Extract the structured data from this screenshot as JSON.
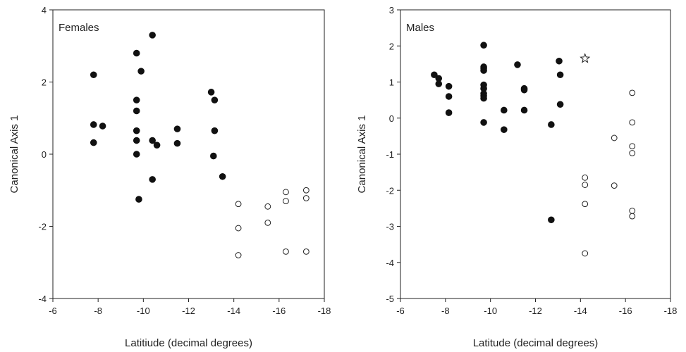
{
  "chart_data": [
    {
      "type": "scatter",
      "panel_label": "Females",
      "xlabel": "Latitiude (decimal degrees)",
      "ylabel": "Canonical Axis 1",
      "xlim": [
        -6,
        -18
      ],
      "ylim": [
        -4,
        4
      ],
      "xticks": [
        -6,
        -8,
        -10,
        -12,
        -14,
        -16,
        -18
      ],
      "yticks": [
        -4,
        -2,
        0,
        2,
        4
      ],
      "grid": false,
      "series": [
        {
          "marker": "filled-circle",
          "points": [
            [
              -7.8,
              2.2
            ],
            [
              -7.8,
              0.82
            ],
            [
              -7.8,
              0.32
            ],
            [
              -8.2,
              0.78
            ],
            [
              -9.7,
              2.8
            ],
            [
              -9.9,
              2.3
            ],
            [
              -9.7,
              1.5
            ],
            [
              -9.7,
              1.2
            ],
            [
              -9.7,
              0.65
            ],
            [
              -9.7,
              0.38
            ],
            [
              -9.7,
              0.0
            ],
            [
              -9.8,
              -1.25
            ],
            [
              -10.4,
              3.3
            ],
            [
              -10.4,
              0.38
            ],
            [
              -10.6,
              0.25
            ],
            [
              -10.4,
              -0.7
            ],
            [
              -11.5,
              0.7
            ],
            [
              -11.5,
              0.3
            ],
            [
              -13.0,
              1.72
            ],
            [
              -13.15,
              1.5
            ],
            [
              -13.15,
              0.65
            ],
            [
              -13.1,
              -0.05
            ],
            [
              -13.5,
              -0.62
            ]
          ]
        },
        {
          "marker": "open-circle",
          "points": [
            [
              -14.2,
              -1.38
            ],
            [
              -14.2,
              -2.05
            ],
            [
              -14.2,
              -2.8
            ],
            [
              -15.5,
              -1.45
            ],
            [
              -15.5,
              -1.9
            ],
            [
              -16.3,
              -1.05
            ],
            [
              -16.3,
              -1.3
            ],
            [
              -16.3,
              -2.7
            ],
            [
              -17.2,
              -1.0
            ],
            [
              -17.2,
              -1.22
            ],
            [
              -17.2,
              -2.7
            ]
          ]
        }
      ]
    },
    {
      "type": "scatter",
      "panel_label": "Males",
      "xlabel": "Latitude (decimal degrees)",
      "ylabel": "Canonical Axis 1",
      "xlim": [
        -6,
        -18
      ],
      "ylim": [
        -5,
        3
      ],
      "xticks": [
        -6,
        -8,
        -10,
        -12,
        -14,
        -16,
        -18
      ],
      "yticks": [
        -5,
        -4,
        -3,
        -2,
        -1,
        0,
        1,
        2,
        3
      ],
      "grid": false,
      "series": [
        {
          "marker": "filled-circle",
          "points": [
            [
              -7.5,
              1.2
            ],
            [
              -7.7,
              1.1
            ],
            [
              -7.7,
              0.95
            ],
            [
              -8.15,
              0.88
            ],
            [
              -8.15,
              0.6
            ],
            [
              -8.15,
              0.15
            ],
            [
              -9.7,
              2.02
            ],
            [
              -9.7,
              1.42
            ],
            [
              -9.7,
              1.38
            ],
            [
              -9.7,
              1.32
            ],
            [
              -9.7,
              0.92
            ],
            [
              -9.7,
              0.82
            ],
            [
              -9.7,
              0.68
            ],
            [
              -9.7,
              0.62
            ],
            [
              -9.7,
              0.55
            ],
            [
              -9.7,
              -0.12
            ],
            [
              -10.6,
              0.22
            ],
            [
              -10.6,
              -0.32
            ],
            [
              -11.2,
              1.48
            ],
            [
              -11.5,
              0.82
            ],
            [
              -11.5,
              0.78
            ],
            [
              -11.5,
              0.22
            ],
            [
              -12.7,
              -0.18
            ],
            [
              -12.7,
              -2.82
            ],
            [
              -13.05,
              1.58
            ],
            [
              -13.1,
              1.2
            ],
            [
              -13.1,
              0.38
            ]
          ]
        },
        {
          "marker": "open-circle",
          "points": [
            [
              -14.2,
              -1.65
            ],
            [
              -14.2,
              -1.85
            ],
            [
              -14.2,
              -2.38
            ],
            [
              -14.2,
              -3.75
            ],
            [
              -15.5,
              -0.55
            ],
            [
              -15.5,
              -1.87
            ],
            [
              -16.3,
              0.7
            ],
            [
              -16.3,
              -0.12
            ],
            [
              -16.3,
              -0.78
            ],
            [
              -16.3,
              -0.97
            ],
            [
              -16.3,
              -2.57
            ],
            [
              -16.3,
              -2.72
            ]
          ]
        },
        {
          "marker": "open-star",
          "points": [
            [
              -14.2,
              1.65
            ]
          ]
        }
      ]
    }
  ]
}
